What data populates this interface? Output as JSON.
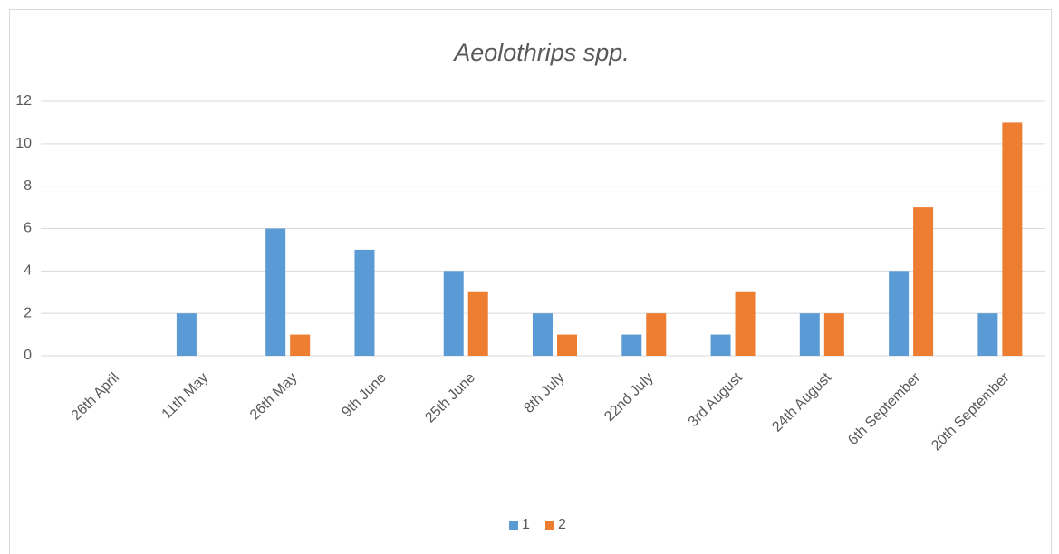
{
  "chart_data": {
    "type": "bar",
    "title": "Aeolothrips spp.",
    "categories": [
      "26th April",
      "11th May",
      "26th May",
      "9th June",
      "25th June",
      "8th July",
      "22nd July",
      "3rd August",
      "24th August",
      "6th September",
      "20th September"
    ],
    "series": [
      {
        "name": "1",
        "color": "#5b9bd5",
        "values": [
          0,
          2,
          6,
          5,
          4,
          2,
          1,
          1,
          2,
          4,
          2
        ]
      },
      {
        "name": "2",
        "color": "#ed7d31",
        "values": [
          0,
          0,
          1,
          0,
          3,
          1,
          2,
          3,
          2,
          7,
          11
        ]
      }
    ],
    "ylim": [
      0,
      12
    ],
    "yticks": [
      0,
      2,
      4,
      6,
      8,
      10,
      12
    ],
    "grid": true,
    "legend": "bottom"
  }
}
